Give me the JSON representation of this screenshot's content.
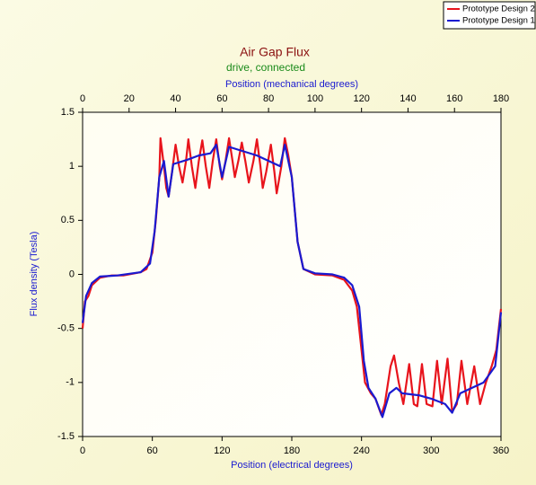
{
  "chart_data": {
    "type": "line",
    "title": "Air Gap Flux",
    "subtitle": "drive,  connected",
    "x_label": "Position (electrical degrees)",
    "x2_label": "Position (mechanical degrees)",
    "y_label": "Flux density (Tesla)",
    "xlim": [
      0,
      360
    ],
    "xticks": [
      0,
      60,
      120,
      180,
      240,
      300,
      360
    ],
    "x2lim": [
      0,
      180
    ],
    "x2ticks": [
      0,
      20,
      40,
      60,
      80,
      100,
      120,
      140,
      160,
      180
    ],
    "ylim": [
      -1.5,
      1.5
    ],
    "yticks": [
      -1.5,
      -1,
      -0.5,
      0,
      0.5,
      1,
      1.5
    ],
    "grid": false,
    "legend": "top-right",
    "series": [
      {
        "name": "Prototype Design 2",
        "color": "#e8141c",
        "x": [
          0,
          2,
          5,
          8,
          15,
          25,
          35,
          50,
          55,
          60,
          63,
          66,
          67,
          70,
          72,
          74,
          77,
          80,
          83,
          86,
          89,
          91,
          94,
          97,
          100,
          103,
          106,
          109,
          112,
          115,
          118,
          120,
          123,
          126,
          129,
          131,
          134,
          137,
          140,
          143,
          147,
          150,
          153,
          155,
          158,
          162,
          165,
          167,
          171,
          174,
          177,
          180,
          185,
          190,
          200,
          215,
          225,
          232,
          236,
          240,
          243,
          248,
          252,
          257,
          260,
          265,
          268,
          272,
          276,
          281,
          285,
          288,
          292,
          296,
          301,
          305,
          309,
          314,
          318,
          322,
          326,
          331,
          337,
          342,
          347,
          352,
          356,
          360
        ],
        "values": [
          -0.5,
          -0.25,
          -0.2,
          -0.1,
          -0.03,
          -0.01,
          -0.01,
          0.02,
          0.05,
          0.2,
          0.5,
          0.9,
          1.26,
          1.0,
          0.8,
          0.72,
          0.95,
          1.2,
          1.0,
          0.85,
          1.05,
          1.25,
          1.0,
          0.8,
          1.05,
          1.24,
          1.0,
          0.8,
          1.05,
          1.25,
          1.0,
          0.88,
          1.05,
          1.26,
          1.05,
          0.9,
          1.05,
          1.22,
          1.05,
          0.85,
          1.05,
          1.25,
          1.0,
          0.8,
          0.95,
          1.2,
          0.95,
          0.75,
          1.0,
          1.26,
          1.1,
          0.9,
          0.3,
          0.05,
          0.0,
          -0.01,
          -0.05,
          -0.15,
          -0.3,
          -0.7,
          -1.0,
          -1.1,
          -1.15,
          -1.3,
          -1.2,
          -0.85,
          -0.75,
          -1.0,
          -1.2,
          -0.83,
          -1.2,
          -1.22,
          -0.83,
          -1.2,
          -1.22,
          -0.8,
          -1.2,
          -0.78,
          -1.27,
          -1.2,
          -0.8,
          -1.2,
          -0.85,
          -1.2,
          -1.0,
          -0.85,
          -0.7,
          -0.32
        ]
      },
      {
        "name": "Prototype Design 1",
        "color": "#1a1ad0",
        "x": [
          0,
          3,
          8,
          15,
          30,
          50,
          58,
          62,
          66,
          70,
          74,
          78,
          90,
          100,
          110,
          115,
          120,
          126,
          135,
          150,
          160,
          170,
          174,
          180,
          185,
          190,
          200,
          215,
          225,
          232,
          238,
          242,
          246,
          252,
          258,
          264,
          270,
          275,
          290,
          300,
          312,
          318,
          325,
          335,
          345,
          355,
          360
        ],
        "values": [
          -0.45,
          -0.2,
          -0.08,
          -0.02,
          -0.01,
          0.02,
          0.1,
          0.4,
          0.9,
          1.05,
          0.72,
          1.02,
          1.06,
          1.1,
          1.12,
          1.2,
          0.9,
          1.18,
          1.15,
          1.1,
          1.05,
          1.0,
          1.2,
          0.9,
          0.3,
          0.05,
          0.01,
          0.0,
          -0.03,
          -0.1,
          -0.3,
          -0.8,
          -1.05,
          -1.15,
          -1.32,
          -1.1,
          -1.05,
          -1.1,
          -1.12,
          -1.15,
          -1.2,
          -1.28,
          -1.1,
          -1.05,
          -1.0,
          -0.85,
          -0.35
        ]
      }
    ]
  }
}
